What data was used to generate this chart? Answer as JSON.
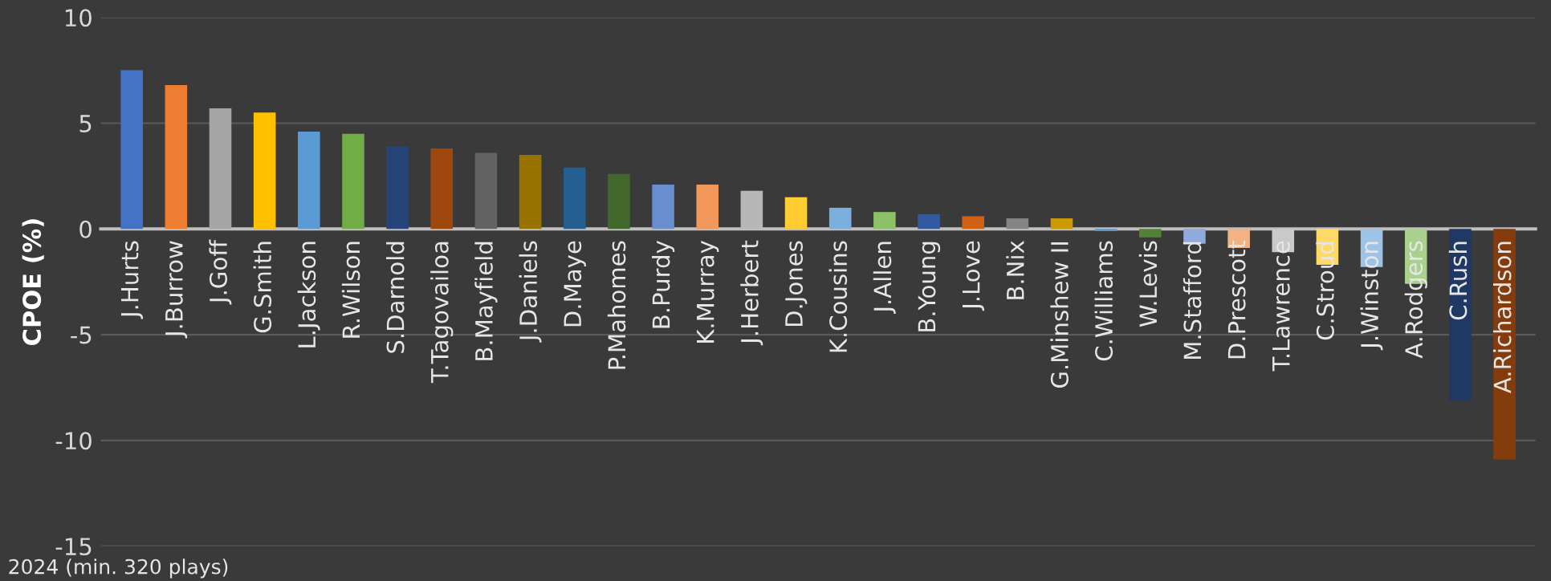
{
  "chart_data": {
    "type": "bar",
    "ylabel": "CPOE (%)",
    "categories": [
      "J.Hurts",
      "J.Burrow",
      "J.Goff",
      "G.Smith",
      "L.Jackson",
      "R.Wilson",
      "S.Darnold",
      "T.Tagovailoa",
      "B.Mayfield",
      "J.Daniels",
      "D.Maye",
      "P.Mahomes",
      "B.Purdy",
      "K.Murray",
      "J.Herbert",
      "D.Jones",
      "K.Cousins",
      "J.Allen",
      "B.Young",
      "J.Love",
      "B.Nix",
      "G.Minshew II",
      "C.Williams",
      "W.Levis",
      "M.Stafford",
      "D.Prescott",
      "T.Lawrence",
      "C.Stroud",
      "J.Winston",
      "A.Rodgers",
      "C.Rush",
      "A.Richardson"
    ],
    "values": [
      7.5,
      6.8,
      5.7,
      5.5,
      4.6,
      4.5,
      3.9,
      3.8,
      3.6,
      3.5,
      2.9,
      2.6,
      2.1,
      2.1,
      1.8,
      1.5,
      1.0,
      0.8,
      0.7,
      0.6,
      0.5,
      0.5,
      -0.1,
      -0.4,
      -0.7,
      -0.9,
      -1.1,
      -1.7,
      -1.8,
      -2.6,
      -8.1,
      -10.9
    ],
    "colors": [
      "#4472c4",
      "#ed7d31",
      "#a5a5a5",
      "#ffc000",
      "#5b9bd5",
      "#70ad47",
      "#264478",
      "#9e480e",
      "#636363",
      "#997300",
      "#255e91",
      "#43682b",
      "#698ed0",
      "#f1975a",
      "#b7b7b7",
      "#ffcd33",
      "#7cafdd",
      "#8cc168",
      "#335aa1",
      "#d26012",
      "#848484",
      "#cc9a00",
      "#5b9bd5",
      "#548235",
      "#8faadc",
      "#f4b183",
      "#c9c9c9",
      "#ffd966",
      "#9dc3e6",
      "#a9d18e",
      "#203864",
      "#843c0c"
    ],
    "ylim": [
      -15,
      10
    ],
    "yticks": [
      -15,
      -10,
      -5,
      0,
      5,
      10
    ],
    "grid": "y",
    "legend": false,
    "annotations": [
      "2024 (min. 320 plays)"
    ]
  }
}
